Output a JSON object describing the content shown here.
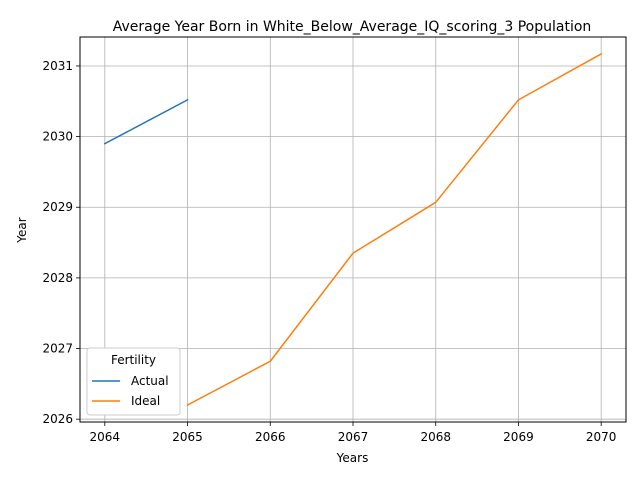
{
  "chart_data": {
    "type": "line",
    "title": "Average Year Born in White_Below_Average_IQ_scoring_3 Population",
    "xlabel": "Years",
    "ylabel": "Year",
    "xlim": [
      2063.7,
      2070.3
    ],
    "ylim": [
      2025.96,
      2031.41
    ],
    "x_ticks": [
      2064,
      2065,
      2066,
      2067,
      2068,
      2069,
      2070
    ],
    "y_ticks": [
      2026,
      2027,
      2028,
      2029,
      2030,
      2031
    ],
    "grid": true,
    "legend": {
      "title": "Fertility",
      "placement": "lower-left"
    },
    "series": [
      {
        "name": "Actual",
        "color": "#1f77b4",
        "x": [
          2064,
          2065
        ],
        "y": [
          2029.9,
          2030.52
        ]
      },
      {
        "name": "Ideal",
        "color": "#ff7f0e",
        "x": [
          2065,
          2066,
          2067,
          2068,
          2069,
          2070
        ],
        "y": [
          2026.2,
          2026.82,
          2028.35,
          2029.07,
          2030.52,
          2031.17
        ]
      }
    ]
  }
}
